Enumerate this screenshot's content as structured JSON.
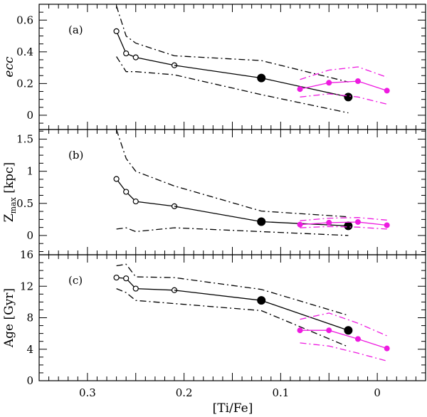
{
  "chart_data": {
    "type": "line",
    "xlabel": "[Ti/Fe]",
    "xlim": [
      0.35,
      -0.05
    ],
    "x_ticks": [
      0.3,
      0.2,
      0.1,
      0
    ],
    "x_tick_labels": [
      "0.3",
      "0.2",
      "0.1",
      "0"
    ],
    "colors": {
      "black": "#000000",
      "magenta": "#ee1be0"
    },
    "panels": [
      {
        "label": "(a)",
        "ylabel": "ecc",
        "ylim": [
          -0.09,
          0.7
        ],
        "y_ticks": [
          0,
          0.2,
          0.4,
          0.6
        ],
        "y_tick_labels": [
          "0",
          "0.2",
          "0.4",
          "0.6"
        ],
        "series": [
          {
            "style": "solid",
            "color": "black",
            "marker": "open",
            "x": [
              0.27,
              0.26,
              0.25,
              0.21
            ],
            "y": [
              0.53,
              0.39,
              0.365,
              0.315
            ]
          },
          {
            "style": "solid",
            "color": "black",
            "marker": "none",
            "x": [
              0.21,
              0.12
            ],
            "y": [
              0.315,
              0.235
            ]
          },
          {
            "style": "solid",
            "color": "black",
            "marker": "filled-large",
            "x": [
              0.12,
              0.03
            ],
            "y": [
              0.235,
              0.115
            ]
          },
          {
            "style": "dashdot",
            "color": "black",
            "marker": "none",
            "x": [
              0.27,
              0.26,
              0.25,
              0.21,
              0.12,
              0.03
            ],
            "y": [
              0.69,
              0.5,
              0.455,
              0.375,
              0.345,
              0.21
            ]
          },
          {
            "style": "dashdot",
            "color": "black",
            "marker": "none",
            "x": [
              0.27,
              0.26,
              0.25,
              0.21,
              0.12,
              0.03
            ],
            "y": [
              0.37,
              0.275,
              0.275,
              0.255,
              0.13,
              0.015
            ]
          },
          {
            "style": "solid",
            "color": "magenta",
            "marker": "filled",
            "x": [
              0.08,
              0.05,
              0.02,
              -0.01
            ],
            "y": [
              0.165,
              0.205,
              0.215,
              0.155
            ]
          },
          {
            "style": "dashdot",
            "color": "magenta",
            "marker": "none",
            "x": [
              0.08,
              0.05,
              0.02,
              -0.01
            ],
            "y": [
              0.225,
              0.285,
              0.305,
              0.24
            ]
          },
          {
            "style": "dashdot",
            "color": "magenta",
            "marker": "none",
            "x": [
              0.08,
              0.05,
              0.02,
              -0.01
            ],
            "y": [
              0.115,
              0.135,
              0.115,
              0.07
            ]
          }
        ]
      },
      {
        "label": "(b)",
        "ylabel": "Z",
        "ylabel_sub": "max",
        "ylabel_unit": " [kpc]",
        "ylim": [
          -0.3,
          1.65
        ],
        "y_ticks": [
          0,
          0.5,
          1,
          1.5
        ],
        "y_tick_labels": [
          "0",
          "0.5",
          "1",
          "1.5"
        ],
        "series": [
          {
            "style": "solid",
            "color": "black",
            "marker": "open",
            "x": [
              0.27,
              0.26,
              0.25,
              0.21
            ],
            "y": [
              0.88,
              0.68,
              0.53,
              0.455
            ]
          },
          {
            "style": "solid",
            "color": "black",
            "marker": "none",
            "x": [
              0.21,
              0.12
            ],
            "y": [
              0.455,
              0.215
            ]
          },
          {
            "style": "solid",
            "color": "black",
            "marker": "filled-large",
            "x": [
              0.12,
              0.03
            ],
            "y": [
              0.215,
              0.15
            ]
          },
          {
            "style": "dashdot",
            "color": "black",
            "marker": "none",
            "x": [
              0.27,
              0.26,
              0.25,
              0.21,
              0.12,
              0.03
            ],
            "y": [
              1.65,
              1.2,
              1.0,
              0.77,
              0.38,
              0.29
            ]
          },
          {
            "style": "dashdot",
            "color": "black",
            "marker": "none",
            "x": [
              0.27,
              0.26,
              0.25,
              0.21,
              0.12,
              0.03
            ],
            "y": [
              0.1,
              0.12,
              0.06,
              0.12,
              0.06,
              0.0
            ]
          },
          {
            "style": "solid",
            "color": "magenta",
            "marker": "filled",
            "x": [
              0.08,
              0.05,
              0.02,
              -0.01
            ],
            "y": [
              0.17,
              0.2,
              0.21,
              0.16
            ]
          },
          {
            "style": "dashdot",
            "color": "magenta",
            "marker": "none",
            "x": [
              0.08,
              0.05,
              0.02,
              -0.01
            ],
            "y": [
              0.23,
              0.27,
              0.28,
              0.24
            ]
          },
          {
            "style": "dashdot",
            "color": "magenta",
            "marker": "none",
            "x": [
              0.08,
              0.05,
              0.02,
              -0.01
            ],
            "y": [
              0.12,
              0.14,
              0.13,
              0.1
            ]
          }
        ]
      },
      {
        "label": "(c)",
        "ylabel": "Age",
        "ylabel_unit": " [Gyr]",
        "ylim": [
          0,
          16
        ],
        "y_ticks": [
          0,
          4,
          8,
          12,
          16
        ],
        "y_tick_labels": [
          "0",
          "4",
          "8",
          "12",
          "16"
        ],
        "series": [
          {
            "style": "solid",
            "color": "black",
            "marker": "open",
            "x": [
              0.27,
              0.26,
              0.25,
              0.21
            ],
            "y": [
              13.1,
              13.0,
              11.7,
              11.5
            ]
          },
          {
            "style": "solid",
            "color": "black",
            "marker": "none",
            "x": [
              0.21,
              0.12
            ],
            "y": [
              11.5,
              10.2
            ]
          },
          {
            "style": "solid",
            "color": "black",
            "marker": "filled-large",
            "x": [
              0.12,
              0.03
            ],
            "y": [
              10.2,
              6.4
            ]
          },
          {
            "style": "dashdot",
            "color": "black",
            "marker": "none",
            "x": [
              0.27,
              0.26,
              0.25,
              0.21,
              0.12,
              0.03
            ],
            "y": [
              14.6,
              14.8,
              13.2,
              13.1,
              11.6,
              8.3
            ]
          },
          {
            "style": "dashdot",
            "color": "black",
            "marker": "none",
            "x": [
              0.27,
              0.26,
              0.25,
              0.21,
              0.12,
              0.03
            ],
            "y": [
              11.7,
              11.2,
              10.2,
              9.8,
              8.9,
              4.3
            ]
          },
          {
            "style": "solid",
            "color": "magenta",
            "marker": "filled",
            "x": [
              0.08,
              0.05,
              0.02,
              -0.01
            ],
            "y": [
              6.4,
              6.4,
              5.3,
              4.1
            ]
          },
          {
            "style": "dashdot",
            "color": "magenta",
            "marker": "none",
            "x": [
              0.08,
              0.05,
              0.02,
              -0.01
            ],
            "y": [
              7.8,
              8.6,
              7.3,
              5.7
            ]
          },
          {
            "style": "dashdot",
            "color": "magenta",
            "marker": "none",
            "x": [
              0.08,
              0.05,
              0.02,
              -0.01
            ],
            "y": [
              4.8,
              4.4,
              3.5,
              2.5
            ]
          }
        ]
      }
    ]
  }
}
